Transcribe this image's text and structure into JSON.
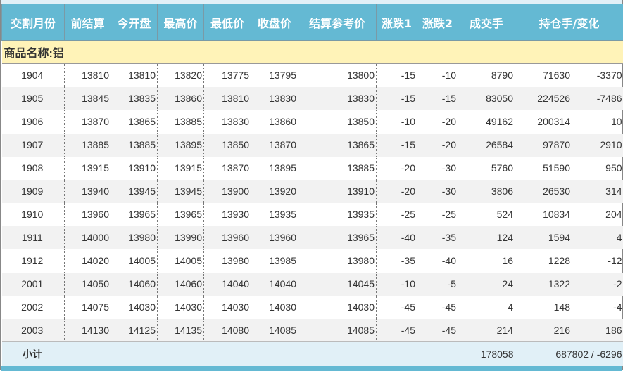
{
  "headers": [
    "交割月份",
    "前结算",
    "今开盘",
    "最高价",
    "最低价",
    "收盘价",
    "结算参考价",
    "涨跌1",
    "涨跌2",
    "成交手",
    "持仓手/变化"
  ],
  "commodity": "商品名称:铝",
  "rows": [
    [
      "1904",
      "13810",
      "13810",
      "13820",
      "13775",
      "13795",
      "13800",
      "-15",
      "-10",
      "8790",
      "71630",
      "-3370"
    ],
    [
      "1905",
      "13845",
      "13835",
      "13860",
      "13810",
      "13830",
      "13830",
      "-15",
      "-15",
      "83050",
      "224526",
      "-7486"
    ],
    [
      "1906",
      "13870",
      "13865",
      "13885",
      "13830",
      "13860",
      "13850",
      "-10",
      "-20",
      "49162",
      "200314",
      "10"
    ],
    [
      "1907",
      "13885",
      "13885",
      "13895",
      "13850",
      "13870",
      "13865",
      "-15",
      "-20",
      "26584",
      "97870",
      "2910"
    ],
    [
      "1908",
      "13915",
      "13910",
      "13915",
      "13870",
      "13895",
      "13885",
      "-20",
      "-30",
      "5760",
      "51590",
      "950"
    ],
    [
      "1909",
      "13940",
      "13945",
      "13945",
      "13900",
      "13920",
      "13910",
      "-20",
      "-30",
      "3806",
      "26530",
      "314"
    ],
    [
      "1910",
      "13960",
      "13965",
      "13965",
      "13930",
      "13935",
      "13935",
      "-25",
      "-25",
      "524",
      "10834",
      "204"
    ],
    [
      "1911",
      "14000",
      "13980",
      "13990",
      "13960",
      "13960",
      "13965",
      "-40",
      "-35",
      "124",
      "1594",
      "4"
    ],
    [
      "1912",
      "14020",
      "14005",
      "14005",
      "13980",
      "13985",
      "13980",
      "-35",
      "-40",
      "16",
      "1228",
      "-12"
    ],
    [
      "2001",
      "14050",
      "14060",
      "14060",
      "14040",
      "14040",
      "14045",
      "-10",
      "-5",
      "24",
      "1322",
      "-2"
    ],
    [
      "2002",
      "14075",
      "14030",
      "14030",
      "14030",
      "14030",
      "14030",
      "-45",
      "-45",
      "4",
      "148",
      "-4"
    ],
    [
      "2003",
      "14130",
      "14125",
      "14135",
      "14080",
      "14085",
      "14085",
      "-45",
      "-45",
      "214",
      "216",
      "186"
    ]
  ],
  "subtotal": {
    "label": "小计",
    "volume": "178058",
    "holding": "687802 / -6296"
  }
}
